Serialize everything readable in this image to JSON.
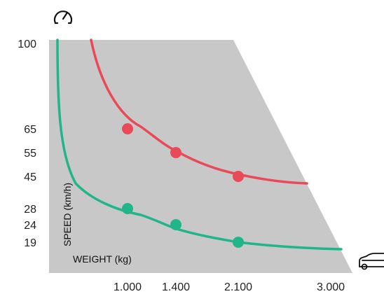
{
  "chart_data": {
    "type": "line",
    "title": "",
    "xlabel": "WEIGHT (kg)",
    "ylabel": "SPEED (km/h)",
    "x_ticks": [
      {
        "value": 1000,
        "label": "1.000"
      },
      {
        "value": 1400,
        "label": "1.400"
      },
      {
        "value": 2100,
        "label": "2.100"
      },
      {
        "value": 3000,
        "label": "3.000"
      }
    ],
    "y_ticks": [
      {
        "value": 19,
        "label": "19"
      },
      {
        "value": 24,
        "label": "24"
      },
      {
        "value": 28,
        "label": "28"
      },
      {
        "value": 45,
        "label": "45"
      },
      {
        "value": 55,
        "label": "55"
      },
      {
        "value": 65,
        "label": "65"
      },
      {
        "value": 100,
        "label": "100"
      }
    ],
    "series": [
      {
        "color": "#e84a57",
        "points": [
          {
            "x": 1000,
            "y": 65
          },
          {
            "x": 1400,
            "y": 55
          },
          {
            "x": 2100,
            "y": 45
          }
        ]
      },
      {
        "color": "#22b58a",
        "points": [
          {
            "x": 1000,
            "y": 28
          },
          {
            "x": 1400,
            "y": 24
          },
          {
            "x": 2100,
            "y": 19
          }
        ]
      }
    ],
    "region_color": "#c8c8c8",
    "icons": {
      "y_axis": "speedometer-icon",
      "x_axis": "car-icon"
    }
  }
}
